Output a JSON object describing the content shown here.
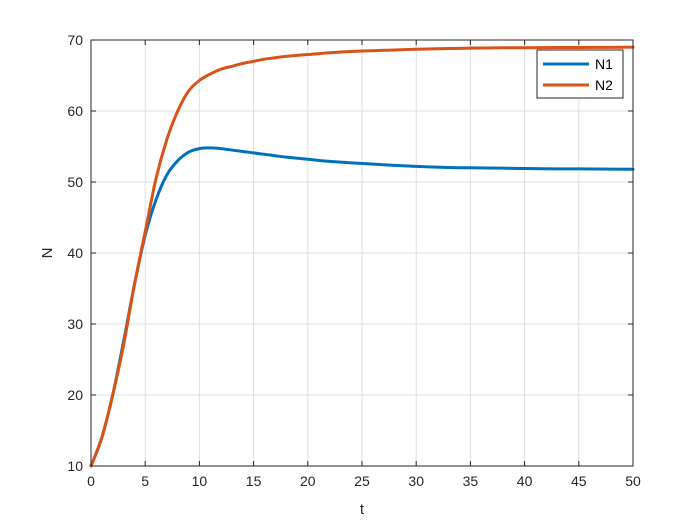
{
  "chart_data": {
    "type": "line",
    "title": "",
    "xlabel": "t",
    "ylabel": "N",
    "xlim": [
      0,
      50
    ],
    "ylim": [
      10,
      70
    ],
    "xticks": [
      0,
      5,
      10,
      15,
      20,
      25,
      30,
      35,
      40,
      45,
      50
    ],
    "yticks": [
      10,
      20,
      30,
      40,
      50,
      60,
      70
    ],
    "grid": true,
    "legend_position": "top-right",
    "x": [
      0,
      1,
      2,
      3,
      4,
      5,
      6,
      7,
      8,
      9,
      10,
      11,
      12,
      13,
      14,
      15,
      16,
      17,
      18,
      20,
      22,
      25,
      28,
      30,
      33,
      35,
      38,
      40,
      43,
      45,
      48,
      50
    ],
    "series": [
      {
        "name": "N1",
        "color": "#0072BD",
        "values": [
          10,
          14,
          20,
          27.5,
          35.5,
          42.5,
          47.5,
          51,
          53,
          54.2,
          54.7,
          54.8,
          54.7,
          54.5,
          54.3,
          54.1,
          53.9,
          53.7,
          53.5,
          53.2,
          52.9,
          52.6,
          52.35,
          52.2,
          52.05,
          52.0,
          51.95,
          51.9,
          51.85,
          51.85,
          51.82,
          51.8
        ]
      },
      {
        "name": "N2",
        "color": "#D95319",
        "values": [
          10,
          14,
          20,
          27,
          35.5,
          43,
          50.5,
          56,
          60,
          62.8,
          64.3,
          65.2,
          65.9,
          66.3,
          66.7,
          67.0,
          67.3,
          67.5,
          67.7,
          67.95,
          68.2,
          68.45,
          68.6,
          68.7,
          68.8,
          68.85,
          68.9,
          68.9,
          68.95,
          68.95,
          68.97,
          69.0
        ]
      }
    ]
  }
}
